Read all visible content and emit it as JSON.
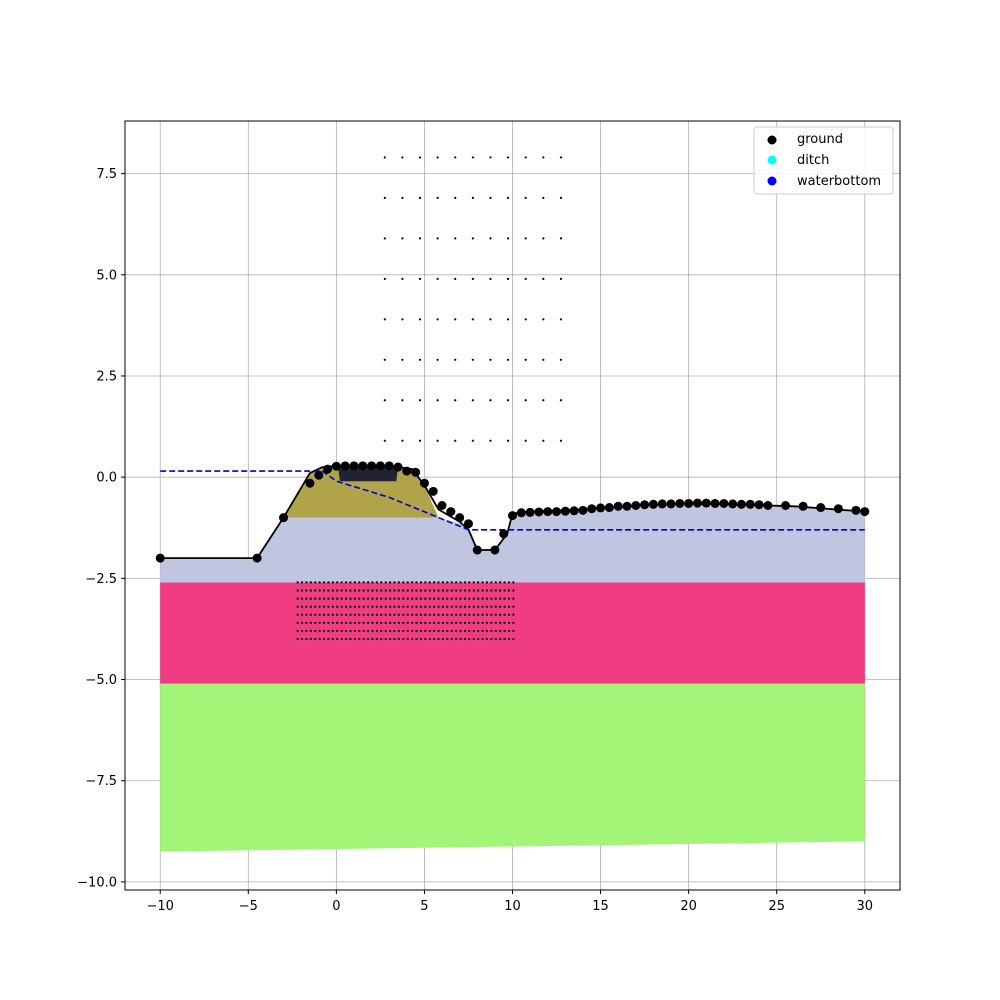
{
  "chart_data": {
    "type": "scatter",
    "title": "",
    "xlabel": "",
    "ylabel": "",
    "xlim": [
      -12,
      32
    ],
    "ylim": [
      -10.2,
      8.8
    ],
    "x_ticks": [
      -10,
      -5,
      0,
      5,
      10,
      15,
      20,
      25,
      30
    ],
    "x_tick_labels": [
      "−10",
      "−5",
      "0",
      "5",
      "10",
      "15",
      "20",
      "25",
      "30"
    ],
    "y_ticks": [
      -10,
      -7.5,
      -5,
      -2.5,
      0,
      2.5,
      5,
      7.5
    ],
    "y_tick_labels": [
      "−10.0",
      "−7.5",
      "−5.0",
      "−2.5",
      "0.0",
      "2.5",
      "5.0",
      "7.5"
    ],
    "grid": true,
    "legend_placement": "top-right",
    "legend": [
      {
        "label": "ground",
        "color": "#000000"
      },
      {
        "label": "ditch",
        "color": "#00ffff"
      },
      {
        "label": "waterbottom",
        "color": "#0000ff"
      }
    ],
    "soil_layers": [
      {
        "color": "#a3f578",
        "polygon": [
          [
            -10,
            -5.1
          ],
          [
            30,
            -5.1
          ],
          [
            30,
            -9.0
          ],
          [
            -10,
            -9.25
          ]
        ]
      },
      {
        "color": "#f03c82",
        "polygon": [
          [
            -10,
            -2.6
          ],
          [
            30,
            -2.6
          ],
          [
            30,
            -5.1
          ],
          [
            -10,
            -5.1
          ]
        ]
      },
      {
        "color": "#c0c5e0",
        "polygon": [
          [
            -10,
            -2.0
          ],
          [
            -4.5,
            -2.0
          ],
          [
            -3.0,
            -1.0
          ],
          [
            5.8,
            -1.0
          ],
          [
            7.5,
            -1.2
          ],
          [
            8.0,
            -1.8
          ],
          [
            9.0,
            -1.8
          ],
          [
            9.7,
            -1.4
          ],
          [
            10.0,
            -0.9
          ],
          [
            11,
            -0.85
          ],
          [
            14,
            -0.8
          ],
          [
            17,
            -0.7
          ],
          [
            20,
            -0.65
          ],
          [
            23,
            -0.68
          ],
          [
            26,
            -0.72
          ],
          [
            30,
            -0.85
          ],
          [
            30,
            -2.6
          ],
          [
            -10,
            -2.6
          ]
        ]
      },
      {
        "color": "#b0a44a",
        "polygon": [
          [
            -3.0,
            -1.0
          ],
          [
            -1.5,
            0.1
          ],
          [
            -0.8,
            0.25
          ],
          [
            4.3,
            0.2
          ],
          [
            5.0,
            -0.2
          ],
          [
            5.8,
            -1.0
          ]
        ]
      }
    ],
    "crest_block": {
      "color": "#222233",
      "polygon": [
        [
          0.1,
          0.25
        ],
        [
          3.5,
          0.25
        ],
        [
          3.4,
          -0.1
        ],
        [
          0.2,
          -0.1
        ]
      ]
    },
    "ground_line": [
      [
        -10,
        -2.0
      ],
      [
        -4.5,
        -2.0
      ],
      [
        -3.0,
        -1.0
      ],
      [
        -1.5,
        0.1
      ],
      [
        -0.8,
        0.25
      ],
      [
        0,
        0.28
      ],
      [
        3,
        0.28
      ],
      [
        4.3,
        0.2
      ],
      [
        5.0,
        -0.2
      ],
      [
        5.8,
        -0.8
      ],
      [
        7.0,
        -1.1
      ],
      [
        7.5,
        -1.3
      ],
      [
        8.0,
        -1.8
      ],
      [
        9.0,
        -1.8
      ],
      [
        9.7,
        -1.4
      ],
      [
        10.0,
        -0.9
      ],
      [
        11,
        -0.85
      ],
      [
        14,
        -0.8
      ],
      [
        17,
        -0.7
      ],
      [
        20,
        -0.65
      ],
      [
        23,
        -0.68
      ],
      [
        26,
        -0.72
      ],
      [
        30,
        -0.85
      ]
    ],
    "ground_points": [
      [
        -10,
        -2.0
      ],
      [
        -4.5,
        -2.0
      ],
      [
        -3.0,
        -1.0
      ],
      [
        -1.5,
        -0.15
      ],
      [
        -1.0,
        0.05
      ],
      [
        -0.5,
        0.2
      ],
      [
        0,
        0.27
      ],
      [
        0.5,
        0.28
      ],
      [
        1.0,
        0.28
      ],
      [
        1.5,
        0.28
      ],
      [
        2.0,
        0.28
      ],
      [
        2.5,
        0.28
      ],
      [
        3.0,
        0.28
      ],
      [
        3.5,
        0.25
      ],
      [
        4.0,
        0.15
      ],
      [
        4.5,
        0.12
      ],
      [
        5.0,
        -0.15
      ],
      [
        5.5,
        -0.35
      ],
      [
        6.0,
        -0.7
      ],
      [
        6.5,
        -0.85
      ],
      [
        7.0,
        -1.0
      ],
      [
        7.5,
        -1.15
      ],
      [
        8.0,
        -1.8
      ],
      [
        9.0,
        -1.8
      ],
      [
        9.5,
        -1.4
      ],
      [
        10.0,
        -0.95
      ],
      [
        10.5,
        -0.88
      ],
      [
        11,
        -0.87
      ],
      [
        11.5,
        -0.86
      ],
      [
        12,
        -0.85
      ],
      [
        12.5,
        -0.85
      ],
      [
        13,
        -0.84
      ],
      [
        13.5,
        -0.83
      ],
      [
        14,
        -0.82
      ],
      [
        14.5,
        -0.78
      ],
      [
        15,
        -0.76
      ],
      [
        15.5,
        -0.75
      ],
      [
        16,
        -0.72
      ],
      [
        16.5,
        -0.72
      ],
      [
        17,
        -0.7
      ],
      [
        17.5,
        -0.68
      ],
      [
        18,
        -0.67
      ],
      [
        18.5,
        -0.66
      ],
      [
        19,
        -0.66
      ],
      [
        19.5,
        -0.65
      ],
      [
        20,
        -0.65
      ],
      [
        20.5,
        -0.64
      ],
      [
        21,
        -0.64
      ],
      [
        21.5,
        -0.65
      ],
      [
        22,
        -0.65
      ],
      [
        22.5,
        -0.66
      ],
      [
        23,
        -0.67
      ],
      [
        23.5,
        -0.67
      ],
      [
        24,
        -0.68
      ],
      [
        24.5,
        -0.7
      ],
      [
        25.5,
        -0.7
      ],
      [
        26.5,
        -0.72
      ],
      [
        27.5,
        -0.75
      ],
      [
        28.5,
        -0.78
      ],
      [
        29.5,
        -0.82
      ],
      [
        30,
        -0.85
      ]
    ],
    "phreatic_line": [
      [
        -10,
        0.15
      ],
      [
        -0.8,
        0.15
      ],
      [
        0,
        -0.1
      ],
      [
        3,
        -0.5
      ],
      [
        7.5,
        -1.3
      ],
      [
        30,
        -1.3
      ]
    ],
    "dot_grid_upper": {
      "x_start": 2.75,
      "x_end": 12.75,
      "x_step": 1.0,
      "y_start": 0.9,
      "y_end": 7.9,
      "y_step": 1.0
    },
    "dot_grid_lower": {
      "x_start": -2.2,
      "x_end": 10.1,
      "x_step": 0.25,
      "y_start": -4.0,
      "y_end": -2.5,
      "y_step": 0.2
    }
  }
}
